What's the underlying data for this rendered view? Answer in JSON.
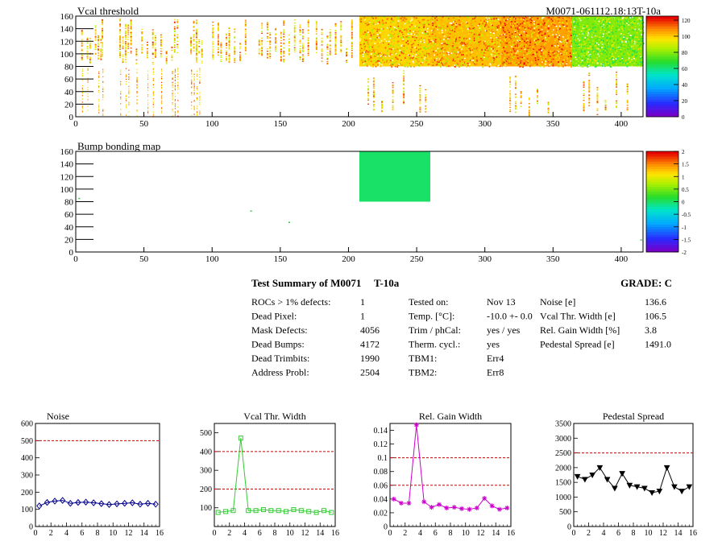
{
  "maps": {
    "threshold": {
      "title": "Vcal threshold",
      "module_id": "M0071-061112.18:13T-10a",
      "x_ticks": [
        "0",
        "50",
        "100",
        "150",
        "200",
        "250",
        "300",
        "350",
        "400"
      ],
      "y_ticks": [
        "0",
        "20",
        "40",
        "60",
        "80",
        "100",
        "120",
        "140",
        "160"
      ],
      "z_ticks": [
        "0",
        "20",
        "40",
        "60",
        "80",
        "100",
        "120"
      ],
      "xlim": [
        0,
        416
      ],
      "ylim": [
        0,
        160
      ],
      "zlim": [
        0,
        125
      ],
      "chip_blocks_upper": [
        {
          "x_range": [
            208,
            260
          ],
          "level": 100
        },
        {
          "x_range": [
            260,
            312
          ],
          "level": 103
        },
        {
          "x_range": [
            312,
            364
          ],
          "level": 107
        },
        {
          "x_range": [
            364,
            416
          ],
          "level": 80
        }
      ]
    },
    "bump": {
      "title": "Bump bonding map",
      "x_ticks": [
        "0",
        "50",
        "100",
        "150",
        "200",
        "250",
        "300",
        "350",
        "400"
      ],
      "y_ticks": [
        "0",
        "20",
        "40",
        "60",
        "80",
        "100",
        "120",
        "140",
        "160"
      ],
      "z_ticks": [
        "-2",
        "-1.5",
        "-1",
        "-0.5",
        "0",
        "0.5",
        "1",
        "1.5",
        "2"
      ],
      "xlim": [
        0,
        416
      ],
      "ylim": [
        0,
        160
      ],
      "zlim": [
        -2,
        2
      ],
      "blocks": [
        {
          "x_range": [
            208,
            260
          ],
          "y_range": [
            80,
            160
          ],
          "value": 0
        }
      ]
    }
  },
  "summary": {
    "title": "Test Summary of M0071",
    "temp_id": "T-10a",
    "grade": "GRADE:  C",
    "col1": [
      {
        "label": "ROCs > 1% defects:",
        "value": "1"
      },
      {
        "label": "Dead Pixel:",
        "value": "1"
      },
      {
        "label": "Mask Defects:",
        "value": "4056"
      },
      {
        "label": "Dead Bumps:",
        "value": "4172"
      },
      {
        "label": "Dead Trimbits:",
        "value": "1990"
      },
      {
        "label": "Address Probl:",
        "value": "2504"
      }
    ],
    "col2": [
      {
        "label": "Tested on:",
        "value": "Nov 13"
      },
      {
        "label": "Temp. [°C]:",
        "value": "-10.0 +- 0.0"
      },
      {
        "label": "Trim / phCal:",
        "value": "yes / yes"
      },
      {
        "label": "Therm. cycl.:",
        "value": "yes"
      },
      {
        "label": "TBM1:",
        "value": "Err4"
      },
      {
        "label": "TBM2:",
        "value": "Err8"
      }
    ],
    "col3": [
      {
        "label": "Noise [e]",
        "value": "136.6"
      },
      {
        "label": "Vcal Thr. Width [e]",
        "value": "106.5"
      },
      {
        "label": "Rel. Gain Width [%]",
        "value": "3.8"
      },
      {
        "label": "Pedestal Spread [e]",
        "value": "1491.0"
      }
    ]
  },
  "chart_data": [
    {
      "type": "line",
      "title": "Noise",
      "x": [
        0,
        1,
        2,
        3,
        4,
        5,
        6,
        7,
        8,
        9,
        10,
        11,
        12,
        13,
        14,
        15
      ],
      "values": [
        120,
        140,
        148,
        152,
        135,
        140,
        142,
        138,
        133,
        128,
        132,
        135,
        138,
        130,
        135,
        130
      ],
      "xlim": [
        0,
        16
      ],
      "ylim": [
        0,
        600
      ],
      "x_ticks": [
        "0",
        "2",
        "4",
        "6",
        "8",
        "10",
        "12",
        "14",
        "16"
      ],
      "y_ticks": [
        "0",
        "100",
        "200",
        "300",
        "400",
        "500",
        "600"
      ],
      "thresholds": [
        500
      ],
      "color": "#00008b",
      "marker": "diamond"
    },
    {
      "type": "line",
      "title": "Vcal Thr. Width",
      "x": [
        0,
        1,
        2,
        3,
        4,
        5,
        6,
        7,
        8,
        9,
        10,
        11,
        12,
        13,
        14,
        15
      ],
      "values": [
        75,
        80,
        85,
        472,
        85,
        85,
        90,
        85,
        85,
        80,
        90,
        85,
        80,
        75,
        85,
        75
      ],
      "xlim": [
        0,
        16
      ],
      "ylim": [
        0,
        550
      ],
      "x_ticks": [
        "0",
        "2",
        "4",
        "6",
        "8",
        "10",
        "12",
        "14",
        "16"
      ],
      "y_ticks": [
        "100",
        "200",
        "300",
        "400",
        "500"
      ],
      "thresholds": [
        200,
        400
      ],
      "color": "#33cc33",
      "marker": "square"
    },
    {
      "type": "line",
      "title": "Rel. Gain Width",
      "x": [
        0,
        1,
        2,
        3,
        4,
        5,
        6,
        7,
        8,
        9,
        10,
        11,
        12,
        13,
        14,
        15
      ],
      "values": [
        0.04,
        0.034,
        0.034,
        0.148,
        0.036,
        0.028,
        0.032,
        0.027,
        0.028,
        0.026,
        0.025,
        0.027,
        0.041,
        0.03,
        0.025,
        0.027
      ],
      "xlim": [
        0,
        16
      ],
      "ylim": [
        0,
        0.15
      ],
      "x_ticks": [
        "0",
        "2",
        "4",
        "6",
        "8",
        "10",
        "12",
        "14",
        "16"
      ],
      "y_ticks": [
        "0",
        "0.02",
        "0.04",
        "0.06",
        "0.08",
        "0.1",
        "0.12",
        "0.14"
      ],
      "thresholds": [
        0.06,
        0.1
      ],
      "color": "#cc00cc",
      "marker": "star"
    },
    {
      "type": "line",
      "title": "Pedestal Spread",
      "x": [
        0,
        1,
        2,
        3,
        4,
        5,
        6,
        7,
        8,
        9,
        10,
        11,
        12,
        13,
        14,
        15
      ],
      "values": [
        1700,
        1600,
        1750,
        2000,
        1600,
        1300,
        1800,
        1400,
        1350,
        1300,
        1150,
        1200,
        2000,
        1350,
        1200,
        1350
      ],
      "xlim": [
        0,
        16
      ],
      "ylim": [
        0,
        3500
      ],
      "x_ticks": [
        "0",
        "2",
        "4",
        "6",
        "8",
        "10",
        "12",
        "14",
        "16"
      ],
      "y_ticks": [
        "0",
        "500",
        "1000",
        "1500",
        "2000",
        "2500",
        "3000",
        "3500"
      ],
      "thresholds": [
        2500
      ],
      "color": "#000000",
      "marker": "triangle"
    }
  ]
}
